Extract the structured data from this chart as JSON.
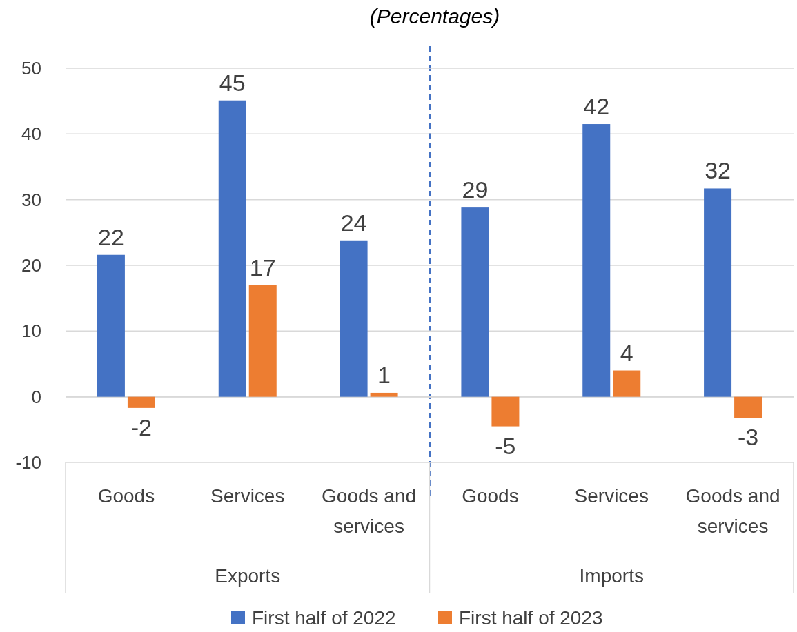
{
  "chart_data": {
    "type": "bar",
    "title": "(Percentages)",
    "categories": [
      "Goods",
      "Services",
      "Goods and services",
      "Goods",
      "Services",
      "Goods and services"
    ],
    "series": [
      {
        "name": "First half of 2022",
        "color": "#4472c4",
        "values": [
          21.6,
          45.1,
          23.8,
          28.8,
          41.5,
          31.7
        ],
        "value_labels": [
          "22",
          "45",
          "24",
          "29",
          "42",
          "32"
        ]
      },
      {
        "name": "First half of 2023",
        "color": "#ed7d31",
        "values": [
          -1.7,
          17.0,
          0.6,
          -4.5,
          4.0,
          -3.2
        ],
        "value_labels": [
          "-2",
          "17",
          "1",
          "-5",
          "4",
          "-3"
        ]
      }
    ],
    "annotations": [
      "Exports",
      "Imports"
    ],
    "ylim": [
      -10,
      50
    ],
    "yticks": [
      -10,
      0,
      10,
      20,
      30,
      40,
      50
    ],
    "grid": "y",
    "legend": "bottom"
  }
}
